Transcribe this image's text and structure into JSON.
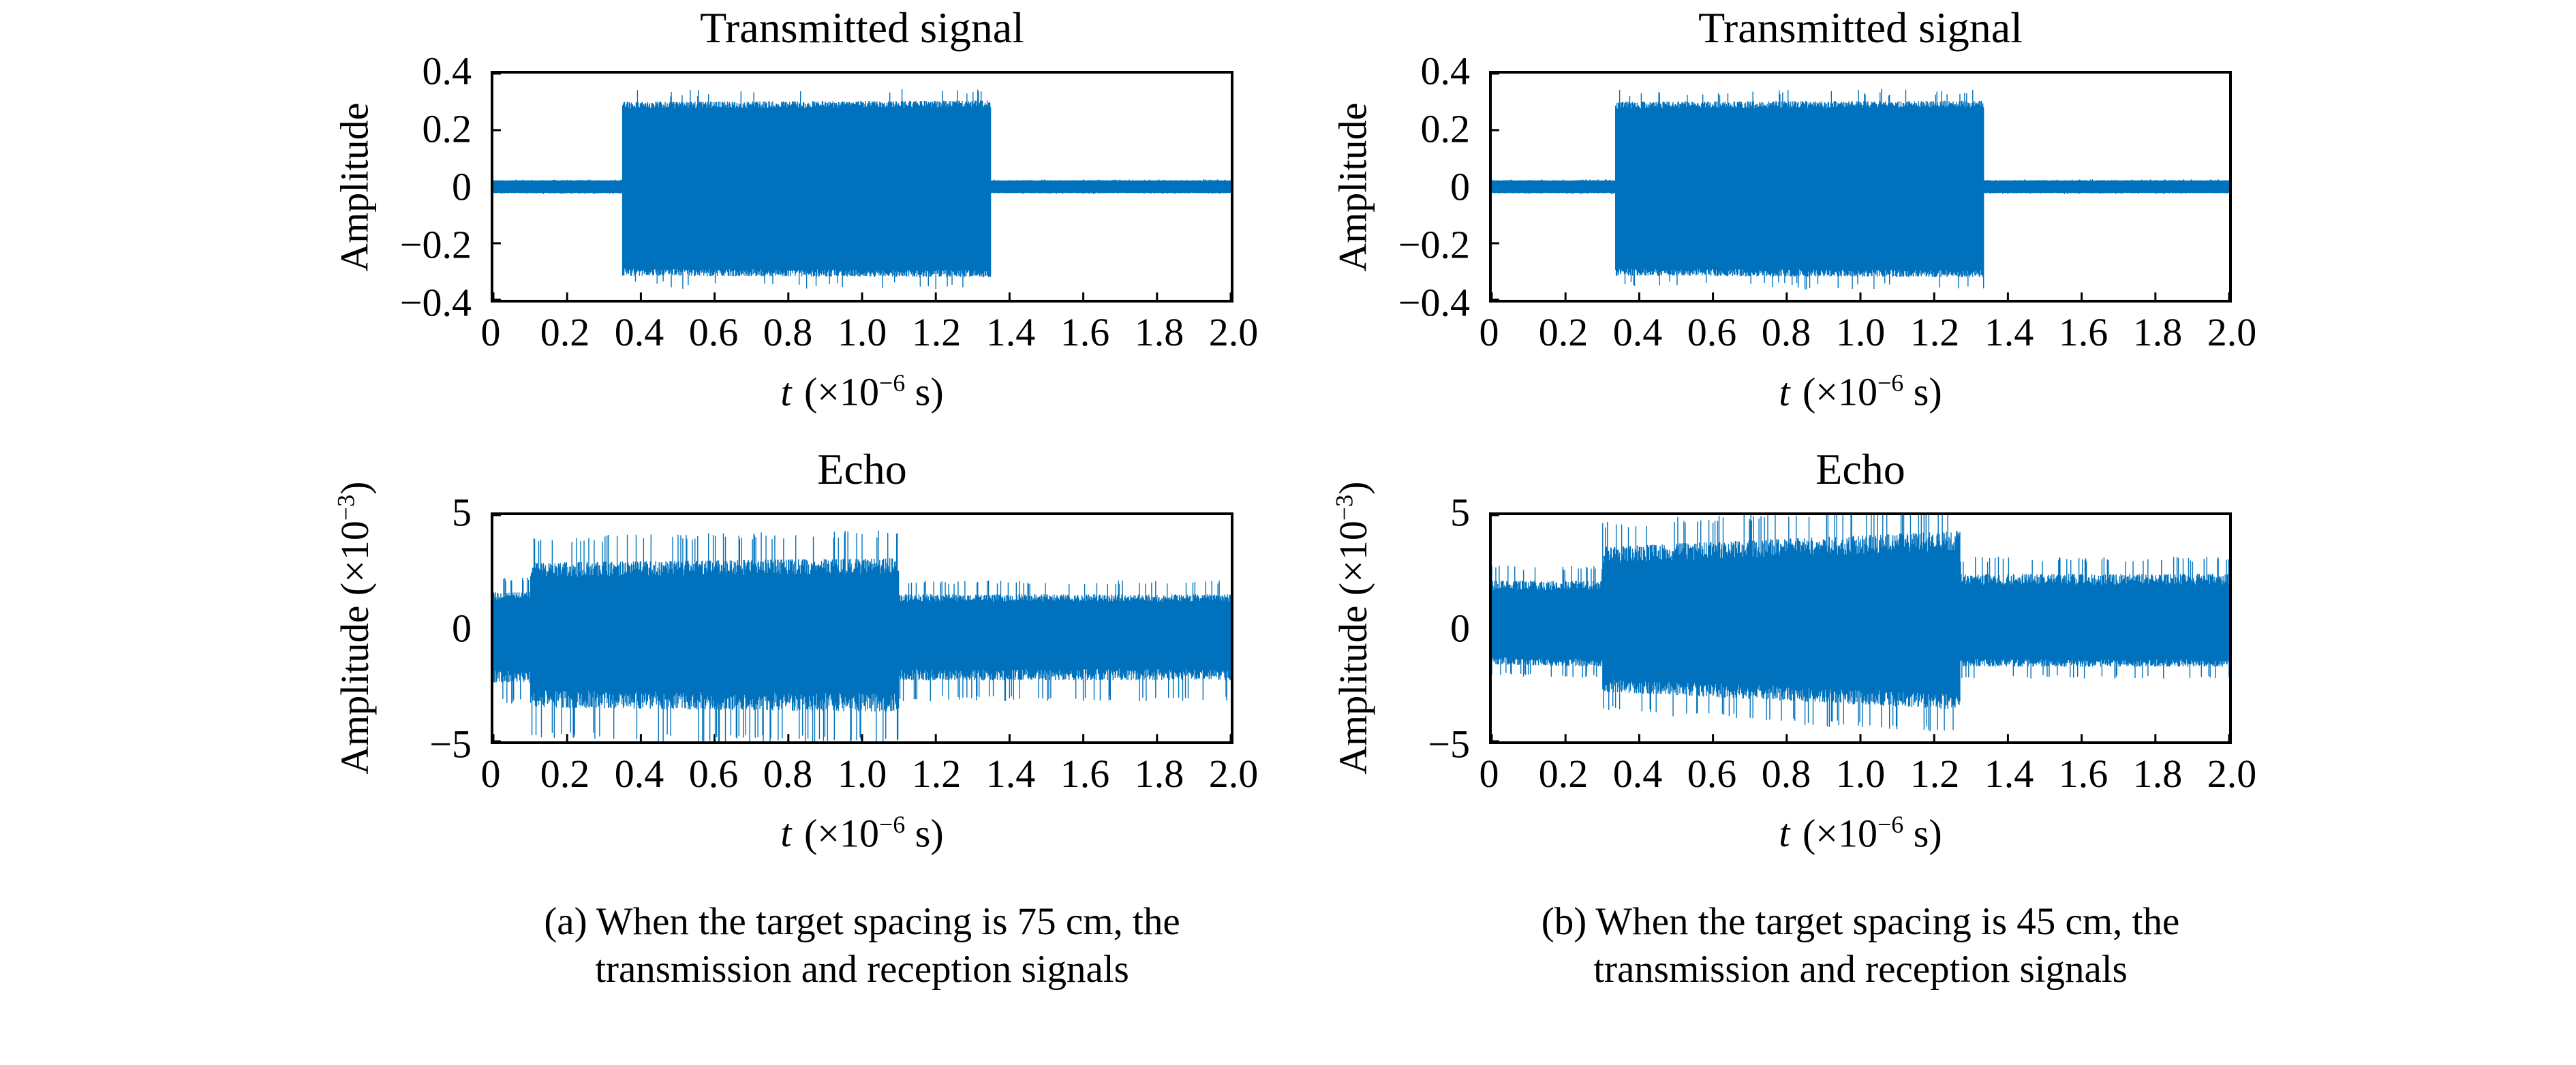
{
  "palette": {
    "signal_blue": "#0072BD",
    "axis_black": "#000000",
    "background": "#ffffff"
  },
  "captions": [
    {
      "line1": "(a) When the target spacing is 75 cm, the",
      "line2": "transmission and reception signals"
    },
    {
      "line1": "(b) When the target spacing is 45 cm, the",
      "line2": "transmission and reception signals"
    }
  ],
  "chart_data": [
    {
      "panel": "a-transmitted",
      "type": "line",
      "title": "Transmitted signal",
      "xlabel": "t (×10⁻⁶ s)",
      "xlabel_parts": {
        "var": "t",
        "pre": " (×10",
        "sup": "−6",
        "post": " s)"
      },
      "ylabel": "Amplitude",
      "ylabel_parts": {
        "pre": "Amplitude",
        "sup": "",
        "post": ""
      },
      "xlim": [
        0,
        2.0
      ],
      "ylim": [
        -0.4,
        0.4
      ],
      "xtick_values": [
        0,
        0.2,
        0.4,
        0.6,
        0.8,
        1.0,
        1.2,
        1.4,
        1.6,
        1.8,
        2.0
      ],
      "xtick_labels": [
        "0",
        "0.2",
        "0.4",
        "0.6",
        "0.8",
        "1.0",
        "1.2",
        "1.4",
        "1.6",
        "1.8",
        "2.0"
      ],
      "ytick_values": [
        0.4,
        0.2,
        0,
        -0.2,
        -0.4
      ],
      "ytick_labels": [
        "0.4",
        "0.2",
        "0",
        "−0.2",
        "−0.4"
      ],
      "grid": false,
      "legend": null,
      "line_color": "#0072BD",
      "envelope_segments": [
        {
          "t0": 0,
          "t1": 0.35,
          "top0": 0.023,
          "top1": 0.023,
          "bot0": -0.023,
          "bot1": -0.023
        },
        {
          "t0": 0.35,
          "t1": 1.35,
          "top0": 0.3,
          "top1": 0.305,
          "bot0": -0.315,
          "bot1": -0.32
        },
        {
          "t0": 1.35,
          "t1": 2.0,
          "top0": 0.023,
          "top1": 0.023,
          "bot0": -0.023,
          "bot1": -0.023
        }
      ],
      "noise": {
        "jitter": 0.08,
        "spike_prob": 0.05,
        "spike_gain": 1.06
      },
      "seed": 11
    },
    {
      "panel": "a-echo",
      "type": "line",
      "title": "Echo",
      "xlabel": "t (×10⁻⁶ s)",
      "xlabel_parts": {
        "var": "t",
        "pre": " (×10",
        "sup": "−6",
        "post": " s)"
      },
      "ylabel": "Amplitude (×10⁻³)",
      "ylabel_parts": {
        "pre": "Amplitude (×10",
        "sup": "−3",
        "post": ")"
      },
      "xlim": [
        0,
        2.0
      ],
      "ylim": [
        -5,
        5
      ],
      "xtick_values": [
        0,
        0.2,
        0.4,
        0.6,
        0.8,
        1.0,
        1.2,
        1.4,
        1.6,
        1.8,
        2.0
      ],
      "xtick_labels": [
        "0",
        "0.2",
        "0.4",
        "0.6",
        "0.8",
        "1.0",
        "1.2",
        "1.4",
        "1.6",
        "1.8",
        "2.0"
      ],
      "ytick_values": [
        5,
        0,
        -5
      ],
      "ytick_labels": [
        "5",
        "0",
        "−5"
      ],
      "grid": false,
      "legend": null,
      "line_color": "#0072BD",
      "envelope_segments": [
        {
          "t0": 0,
          "t1": 0.1,
          "top0": 1.6,
          "top1": 1.6,
          "bot0": -2.4,
          "bot1": -2.4
        },
        {
          "t0": 0.1,
          "t1": 1.1,
          "top0": 2.9,
          "top1": 3.1,
          "bot0": -3.5,
          "bot1": -3.7
        },
        {
          "t0": 1.1,
          "t1": 2.0,
          "top0": 1.5,
          "top1": 1.5,
          "bot0": -2.3,
          "bot1": -2.3
        }
      ],
      "noise": {
        "jitter": 0.22,
        "spike_prob": 0.1,
        "spike_gain": 1.3
      },
      "seed": 23
    },
    {
      "panel": "b-transmitted",
      "type": "line",
      "title": "Transmitted signal",
      "xlabel": "t (×10⁻⁶ s)",
      "xlabel_parts": {
        "var": "t",
        "pre": " (×10",
        "sup": "−6",
        "post": " s)"
      },
      "ylabel": "Amplitude",
      "ylabel_parts": {
        "pre": "Amplitude",
        "sup": "",
        "post": ""
      },
      "xlim": [
        0,
        2.0
      ],
      "ylim": [
        -0.4,
        0.4
      ],
      "xtick_values": [
        0,
        0.2,
        0.4,
        0.6,
        0.8,
        1.0,
        1.2,
        1.4,
        1.6,
        1.8,
        2.0
      ],
      "xtick_labels": [
        "0",
        "0.2",
        "0.4",
        "0.6",
        "0.8",
        "1.0",
        "1.2",
        "1.4",
        "1.6",
        "1.8",
        "2.0"
      ],
      "ytick_values": [
        0.4,
        0.2,
        0,
        -0.2,
        -0.4
      ],
      "ytick_labels": [
        "0.4",
        "0.2",
        "0",
        "−0.2",
        "−0.4"
      ],
      "grid": false,
      "legend": null,
      "line_color": "#0072BD",
      "envelope_segments": [
        {
          "t0": 0,
          "t1": 0.335,
          "top0": 0.023,
          "top1": 0.023,
          "bot0": -0.023,
          "bot1": -0.023
        },
        {
          "t0": 0.335,
          "t1": 1.335,
          "top0": 0.3,
          "top1": 0.305,
          "bot0": -0.315,
          "bot1": -0.32
        },
        {
          "t0": 1.335,
          "t1": 2.0,
          "top0": 0.023,
          "top1": 0.023,
          "bot0": -0.023,
          "bot1": -0.023
        }
      ],
      "noise": {
        "jitter": 0.08,
        "spike_prob": 0.05,
        "spike_gain": 1.06
      },
      "seed": 37
    },
    {
      "panel": "b-echo",
      "type": "line",
      "title": "Echo",
      "xlabel": "t (×10⁻⁶ s)",
      "xlabel_parts": {
        "var": "t",
        "pre": " (×10",
        "sup": "−6",
        "post": " s)"
      },
      "ylabel": "Amplitude (×10⁻³)",
      "ylabel_parts": {
        "pre": "Amplitude (×10",
        "sup": "−3",
        "post": ")"
      },
      "xlim": [
        0,
        2.0
      ],
      "ylim": [
        -5,
        5
      ],
      "xtick_values": [
        0,
        0.2,
        0.4,
        0.6,
        0.8,
        1.0,
        1.2,
        1.4,
        1.6,
        1.8,
        2.0
      ],
      "xtick_labels": [
        "0",
        "0.2",
        "0.4",
        "0.6",
        "0.8",
        "1.0",
        "1.2",
        "1.4",
        "1.6",
        "1.8",
        "2.0"
      ],
      "ytick_values": [
        5,
        0,
        -5
      ],
      "ytick_labels": [
        "5",
        "0",
        "−5"
      ],
      "grid": false,
      "legend": null,
      "line_color": "#0072BD",
      "envelope_segments": [
        {
          "t0": 0,
          "t1": 0.3,
          "top0": 2.1,
          "top1": 2.1,
          "bot0": -1.6,
          "bot1": -1.7
        },
        {
          "t0": 0.3,
          "t1": 1.27,
          "top0": 3.6,
          "top1": 4.3,
          "bot0": -2.8,
          "bot1": -3.6
        },
        {
          "t0": 1.27,
          "t1": 2.0,
          "top0": 2.4,
          "top1": 2.4,
          "bot0": -1.7,
          "bot1": -1.7
        }
      ],
      "noise": {
        "jitter": 0.2,
        "spike_prob": 0.1,
        "spike_gain": 1.22
      },
      "seed": 53
    }
  ]
}
